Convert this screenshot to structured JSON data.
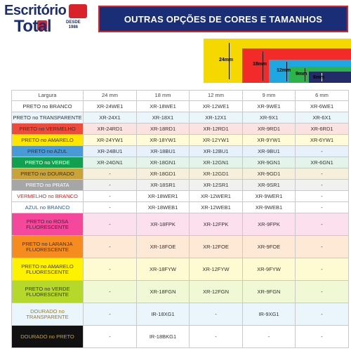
{
  "logo": {
    "line1": "Escritório",
    "line2": "Total",
    "since": "DESDE\n1986"
  },
  "header": {
    "title": "OUTRAS OPÇÕES DE CORES E TAMANHOS"
  },
  "diagram": {
    "colors": {
      "24mm": "#f4d800",
      "18mm": "#f22a2a",
      "12mm": "#1ea7e0",
      "9mm": "#2eb24a",
      "6mm": "#232b68"
    },
    "labels": {
      "l24": "24mm",
      "l18": "18mm",
      "l12": "12mm",
      "l9": "9mm",
      "l6": "6mm"
    }
  },
  "table": {
    "headers": [
      "Largura",
      "24 mm",
      "18 mm",
      "12 mm",
      "9 mm",
      "6 mm"
    ],
    "rows": [
      {
        "name": "PRETO no BRANCO",
        "bg": "#ffffff",
        "fg": "#333333",
        "tall": false,
        "values": [
          "XR-24WE1",
          "XR-18WE1",
          "XR-12WE1",
          "XR-9WE1",
          "XR-6WE1"
        ]
      },
      {
        "name": "PRETO no TRANSPARENTE",
        "bg": "#eaf6fc",
        "fg": "#333333",
        "tall": false,
        "values": [
          "XR-24X1",
          "XR-18X1",
          "XR-12X1",
          "XR-9X1",
          "XR-6X1"
        ]
      },
      {
        "name": "PRETO no VERMELHO",
        "bg": "#fbe3e1",
        "fg": "#333333",
        "tall": false,
        "nameBg": "#f04a3a",
        "values": [
          "XR-24RD1",
          "XR-18RD1",
          "XR-12RD1",
          "XR-9RD1",
          "XR-6RD1"
        ]
      },
      {
        "name": "PRETO no AMARELO",
        "bg": "#fffbd8",
        "fg": "#333333",
        "tall": false,
        "nameBg": "#ffe600",
        "values": [
          "XR-24YW1",
          "XR-18YW1",
          "XR-12YW1",
          "XR-9YW1",
          "XR-6YW1"
        ]
      },
      {
        "name": "PRETO no AZUL",
        "bg": "#e6f1fb",
        "fg": "#333333",
        "tall": false,
        "nameBg": "#4a9ad8",
        "values": [
          "XR-24BU1",
          "XR-18BU1",
          "XR-12BU1",
          "XR-9BU1",
          "-"
        ]
      },
      {
        "name": "PRETO no VERDE",
        "bg": "#e4f4ea",
        "fg": "#ffffff",
        "tall": false,
        "nameBg": "#10a050",
        "values": [
          "XR-24GN1",
          "XR-18GN1",
          "XR-12GN1",
          "XR-9GN1",
          "XR-6GN1"
        ]
      },
      {
        "name": "PRETO no DOURADO",
        "bg": "#f6efdc",
        "fg": "#333333",
        "tall": false,
        "nameBg": "#c9a23a",
        "values": [
          "-",
          "XR-18GD1",
          "XR-12GD1",
          "XR-9GD1",
          "-"
        ]
      },
      {
        "name": "PRETO no PRATA",
        "bg": "#f1f1f1",
        "fg": "#ffffff",
        "tall": false,
        "nameBg": "#a6a6a6",
        "values": [
          "-",
          "XR-18SR1",
          "XR-12SR1",
          "XR-9SR1",
          "-"
        ]
      },
      {
        "name": "VERMELHO no BRANCO",
        "bg": "#ffffff",
        "fg": "#e02020",
        "tall": false,
        "values": [
          "-",
          "XR-18WER1",
          "XR-12WER1",
          "XR-9WER1",
          "-"
        ]
      },
      {
        "name": "AZUL no BRANCO",
        "bg": "#ffffff",
        "fg": "#1a5fb4",
        "tall": false,
        "values": [
          "-",
          "XR-18WEB1",
          "XR-12WEB1",
          "XR-9WEB1",
          "-"
        ]
      },
      {
        "name": "PRETO no ROSA FLUORESCENTE",
        "bg": "#fde0ee",
        "fg": "#333333",
        "tall": true,
        "nameBg": "#f5479b",
        "values": [
          "-",
          "XR-18FPK",
          "XR-12FPK",
          "XR-9FPK",
          "-"
        ]
      },
      {
        "name": "PRETO no LARANJA FLUORESCENTE",
        "bg": "#fde9d6",
        "fg": "#333333",
        "tall": true,
        "nameBg": "#f68b1f",
        "values": [
          "-",
          "XR-18FOE",
          "XR-12FOE",
          "XR-9FOE",
          "-"
        ]
      },
      {
        "name": "PRETO no AMARELO FLUORESCENTE",
        "bg": "#fefbd2",
        "fg": "#333333",
        "tall": true,
        "nameBg": "#fff200",
        "values": [
          "-",
          "XR-18FYW",
          "XR-12FYW",
          "XR-9FYW",
          "-"
        ]
      },
      {
        "name": "PRETO no VERDE FLUORESCENTE",
        "bg": "#f1f8d6",
        "fg": "#333333",
        "tall": true,
        "nameBg": "#b6d82a",
        "values": [
          "-",
          "XR-18FGN",
          "XR-12FGN",
          "XR-9FGN",
          "-"
        ]
      },
      {
        "name": "DOURADO no TRANSPARENTE",
        "bg": "#eaf6fc",
        "fg": "#9a7a20",
        "tall": true,
        "values": [
          "-",
          "IR-18XG1",
          "-",
          "IR-9XG1",
          "-"
        ]
      },
      {
        "name": "DOURADO no PRETO",
        "bg": "#ffffff",
        "fg": "#c9a23a",
        "tall": true,
        "nameBg": "#111111",
        "values": [
          "-",
          "IR-18BKG1",
          "-",
          "-",
          "-"
        ]
      }
    ]
  }
}
